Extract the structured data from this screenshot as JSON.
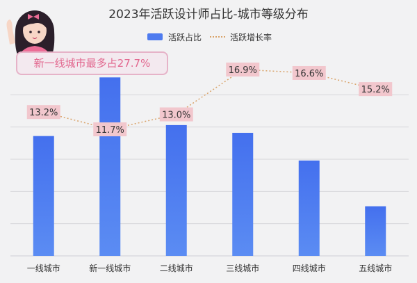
{
  "title": "2023年活跃设计师占比-城市等级分布",
  "legend": {
    "bar_label": "活跃占比",
    "line_label": "活跃增长率"
  },
  "callout": "新一线城市最多占27.7%",
  "colors": {
    "bar": "#4e7bef",
    "line": "#d9a36a",
    "label_bg": "#f2c7cd",
    "callout_text": "#e2668e"
  },
  "chart_data": {
    "type": "bar",
    "categories": [
      "一线城市",
      "新一线城市",
      "二线城市",
      "三线城市",
      "四线城市",
      "五线城市"
    ],
    "series": [
      {
        "name": "活跃占比",
        "type": "bar",
        "values": [
          18.6,
          27.7,
          20.3,
          19.1,
          14.8,
          7.7
        ]
      },
      {
        "name": "活跃增长率",
        "type": "line",
        "values": [
          13.2,
          11.7,
          13.0,
          16.9,
          16.6,
          15.2
        ],
        "labels": [
          "13.2%",
          "11.7%",
          "13.0%",
          "16.9%",
          "16.6%",
          "15.2%"
        ]
      }
    ],
    "ylim": [
      0,
      30
    ],
    "grid": true,
    "legend_position": "top-center"
  }
}
